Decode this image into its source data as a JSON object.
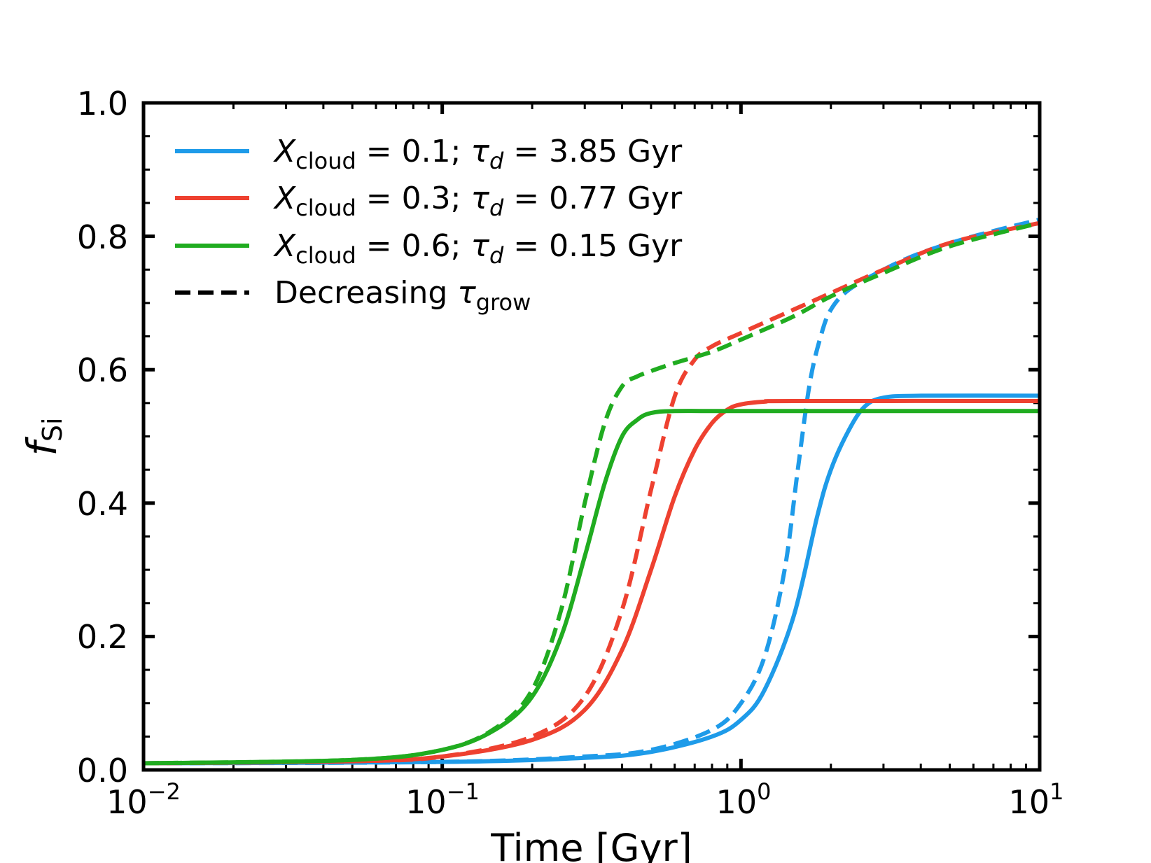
{
  "chart_data": {
    "type": "line",
    "xscale": "log",
    "xlim": [
      0.01,
      10
    ],
    "ylim": [
      0.0,
      1.0
    ],
    "xlabel": "Time [Gyr]",
    "ylabel": {
      "main": "f",
      "sub": "Si"
    },
    "xticks": [
      {
        "base": "10",
        "exp": "−2"
      },
      {
        "base": "10",
        "exp": "−1"
      },
      {
        "base": "10",
        "exp": "0"
      },
      {
        "base": "10",
        "exp": "1"
      }
    ],
    "yticks": [
      "0.0",
      "0.2",
      "0.4",
      "0.6",
      "0.8",
      "1.0"
    ],
    "legend": {
      "location": "upper-left",
      "entries": [
        {
          "x": "X",
          "xsub": "cloud",
          "eq1": " = 0.1; ",
          "tau": "τ",
          "tausub": "d",
          "eq2": " = 3.85 Gyr",
          "color": "#1e9be9",
          "style": "solid"
        },
        {
          "x": "X",
          "xsub": "cloud",
          "eq1": " = 0.3; ",
          "tau": "τ",
          "tausub": "d",
          "eq2": " = 0.77 Gyr",
          "color": "#ee4130",
          "style": "solid"
        },
        {
          "x": "X",
          "xsub": "cloud",
          "eq1": " = 0.6; ",
          "tau": "τ",
          "tausub": "d",
          "eq2": " = 0.15 Gyr",
          "color": "#20ac20",
          "style": "solid"
        }
      ],
      "dashed_entry": {
        "text": "Decreasing ",
        "tau": "τ",
        "tausub": "grow",
        "color": "#000000",
        "style": "dashed"
      }
    },
    "series": [
      {
        "name": "Xcloud=0.1 solid",
        "color": "#1e9be9",
        "dash": false,
        "x": [
          0.01,
          0.1,
          0.3,
          0.5,
          0.8,
          1.0,
          1.2,
          1.5,
          1.8,
          2.0,
          2.3,
          2.6,
          3.0,
          4.0,
          10.0
        ],
        "y": [
          0.01,
          0.012,
          0.018,
          0.027,
          0.05,
          0.075,
          0.12,
          0.23,
          0.38,
          0.45,
          0.51,
          0.545,
          0.558,
          0.561,
          0.561
        ]
      },
      {
        "name": "Xcloud=0.1 dashed",
        "color": "#1e9be9",
        "dash": true,
        "x": [
          0.01,
          0.1,
          0.3,
          0.5,
          0.8,
          1.0,
          1.2,
          1.4,
          1.55,
          1.7,
          1.85,
          2.0,
          2.3,
          3.0,
          4.0,
          6.0,
          10.0
        ],
        "y": [
          0.01,
          0.012,
          0.02,
          0.03,
          0.06,
          0.1,
          0.17,
          0.3,
          0.45,
          0.58,
          0.65,
          0.69,
          0.72,
          0.75,
          0.775,
          0.8,
          0.825
        ]
      },
      {
        "name": "Xcloud=0.3 solid",
        "color": "#ee4130",
        "dash": false,
        "x": [
          0.01,
          0.05,
          0.1,
          0.2,
          0.3,
          0.4,
          0.5,
          0.6,
          0.7,
          0.8,
          0.9,
          1.0,
          1.2,
          1.5,
          10.0
        ],
        "y": [
          0.01,
          0.013,
          0.02,
          0.045,
          0.09,
          0.18,
          0.3,
          0.41,
          0.48,
          0.52,
          0.54,
          0.548,
          0.552,
          0.553,
          0.553
        ]
      },
      {
        "name": "Xcloud=0.3 dashed",
        "color": "#ee4130",
        "dash": true,
        "x": [
          0.01,
          0.05,
          0.1,
          0.2,
          0.3,
          0.4,
          0.5,
          0.6,
          0.7,
          0.8,
          1.0,
          1.5,
          2.0,
          3.0,
          5.0,
          10.0
        ],
        "y": [
          0.01,
          0.013,
          0.02,
          0.05,
          0.11,
          0.24,
          0.42,
          0.56,
          0.615,
          0.635,
          0.655,
          0.69,
          0.715,
          0.75,
          0.79,
          0.82
        ]
      },
      {
        "name": "Xcloud=0.6 solid",
        "color": "#20ac20",
        "dash": false,
        "x": [
          0.01,
          0.05,
          0.1,
          0.15,
          0.2,
          0.25,
          0.3,
          0.35,
          0.4,
          0.45,
          0.5,
          0.6,
          1.0,
          10.0
        ],
        "y": [
          0.01,
          0.015,
          0.03,
          0.06,
          0.11,
          0.2,
          0.32,
          0.43,
          0.5,
          0.525,
          0.535,
          0.538,
          0.538,
          0.538
        ]
      },
      {
        "name": "Xcloud=0.6 dashed",
        "color": "#20ac20",
        "dash": true,
        "x": [
          0.01,
          0.05,
          0.1,
          0.15,
          0.2,
          0.25,
          0.3,
          0.35,
          0.4,
          0.45,
          0.5,
          0.6,
          0.8,
          1.0,
          1.5,
          2.0,
          3.0,
          5.0,
          10.0
        ],
        "y": [
          0.01,
          0.015,
          0.03,
          0.062,
          0.12,
          0.24,
          0.4,
          0.52,
          0.575,
          0.59,
          0.598,
          0.61,
          0.627,
          0.645,
          0.68,
          0.71,
          0.745,
          0.785,
          0.82
        ]
      }
    ]
  }
}
